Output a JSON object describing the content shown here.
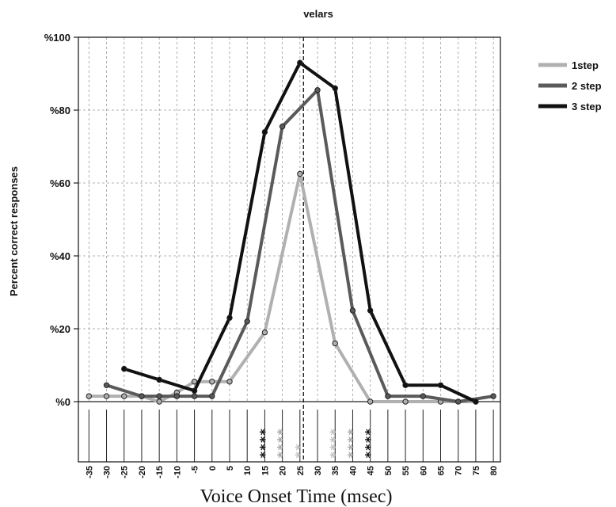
{
  "chart_data": {
    "type": "line",
    "title": "velars",
    "xlabel": "Voice Onset Time (msec)",
    "ylabel": "Percent correct responses",
    "x": [
      -35,
      -30,
      -25,
      -20,
      -15,
      -10,
      -5,
      0,
      5,
      10,
      15,
      20,
      25,
      30,
      35,
      40,
      45,
      50,
      55,
      60,
      65,
      70,
      75,
      80
    ],
    "x_tick_labels": [
      "-35",
      "-30",
      "-25",
      "-20",
      "-15",
      "-10",
      "-5",
      "0",
      "5",
      "10",
      "15",
      "20",
      "25",
      "30",
      "35",
      "40",
      "45",
      "50",
      "55",
      "60",
      "65",
      "70",
      "75",
      "80"
    ],
    "y_ticks": [
      0,
      20,
      40,
      60,
      80,
      100
    ],
    "y_tick_labels": [
      "%0",
      "%20",
      "%40",
      "%60",
      "%80",
      "%100"
    ],
    "xlim": [
      -38,
      82
    ],
    "ylim": [
      0,
      100
    ],
    "grid": true,
    "legend_position": "top-right, outside plot",
    "reference_line_x": 26,
    "series": [
      {
        "name": "1step",
        "color": "#b0b0b0",
        "points": [
          [
            -35,
            1.5
          ],
          [
            -30,
            1.5
          ],
          [
            -25,
            1.5
          ],
          [
            -20,
            1.5
          ],
          [
            -15,
            0
          ],
          [
            -10,
            2.5
          ],
          [
            -5,
            5.5
          ],
          [
            0,
            5.5
          ],
          [
            5,
            5.5
          ],
          [
            15,
            19
          ],
          [
            25,
            62.5
          ],
          [
            35,
            16
          ],
          [
            45,
            0
          ],
          [
            55,
            0
          ],
          [
            65,
            0
          ],
          [
            75,
            0
          ]
        ]
      },
      {
        "name": "2 step",
        "color": "#5a5a5a",
        "points": [
          [
            -30,
            4.5
          ],
          [
            -20,
            1.5
          ],
          [
            -15,
            1.5
          ],
          [
            -10,
            1.5
          ],
          [
            -5,
            1.5
          ],
          [
            0,
            1.5
          ],
          [
            10,
            22
          ],
          [
            20,
            75.5
          ],
          [
            30,
            85.5
          ],
          [
            40,
            25
          ],
          [
            50,
            1.5
          ],
          [
            60,
            1.5
          ],
          [
            70,
            0
          ],
          [
            80,
            1.5
          ]
        ]
      },
      {
        "name": "3 step",
        "color": "#111111",
        "points": [
          [
            -25,
            9
          ],
          [
            -15,
            6
          ],
          [
            -5,
            3
          ],
          [
            5,
            23
          ],
          [
            15,
            74
          ],
          [
            25,
            93
          ],
          [
            35,
            86
          ],
          [
            45,
            25
          ],
          [
            55,
            4.5
          ],
          [
            65,
            4.5
          ],
          [
            75,
            0
          ]
        ]
      }
    ],
    "significance_marks": [
      {
        "x": 15,
        "text": "****",
        "color": "#111111"
      },
      {
        "x": 20,
        "text": "****",
        "color": "#a8a8a8"
      },
      {
        "x": 25,
        "text": "**",
        "color": "#c0c0c0"
      },
      {
        "x": 35,
        "text": "****",
        "color": "#c0c0c0"
      },
      {
        "x": 40,
        "text": "****",
        "color": "#a8a8a8"
      },
      {
        "x": 45,
        "text": "****",
        "color": "#111111"
      }
    ]
  }
}
